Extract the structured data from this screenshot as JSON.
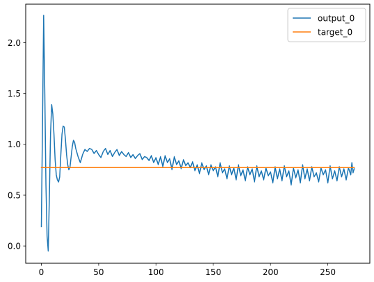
{
  "chart_data": {
    "type": "line",
    "title": "",
    "xlabel": "",
    "ylabel": "",
    "xlim": [
      -13.65,
      286.65
    ],
    "ylim": [
      -0.17,
      2.38
    ],
    "xticks": [
      0,
      50,
      100,
      150,
      200,
      250
    ],
    "yticks": [
      0.0,
      0.5,
      1.0,
      1.5,
      2.0
    ],
    "xtick_labels": [
      "0",
      "50",
      "100",
      "150",
      "200",
      "250"
    ],
    "ytick_labels": [
      "0.0",
      "0.5",
      "1.0",
      "1.5",
      "2.0"
    ],
    "grid": false,
    "legend_position": "top-right",
    "series": [
      {
        "name": "output_0",
        "color": "#1f77b4",
        "x": [
          0,
          1,
          2,
          3,
          4,
          5,
          6,
          7,
          8,
          9,
          10,
          11,
          12,
          13,
          14,
          15,
          16,
          17,
          18,
          19,
          20,
          21,
          22,
          23,
          24,
          25,
          26,
          27,
          28,
          29,
          30,
          32,
          34,
          36,
          38,
          40,
          42,
          44,
          46,
          48,
          50,
          52,
          54,
          56,
          58,
          60,
          62,
          64,
          66,
          68,
          70,
          72,
          74,
          76,
          78,
          80,
          82,
          84,
          86,
          88,
          90,
          92,
          94,
          96,
          98,
          100,
          102,
          104,
          106,
          108,
          110,
          112,
          114,
          116,
          118,
          120,
          122,
          124,
          126,
          128,
          130,
          132,
          134,
          136,
          138,
          140,
          142,
          144,
          146,
          148,
          150,
          152,
          154,
          156,
          158,
          160,
          162,
          164,
          166,
          168,
          170,
          172,
          174,
          176,
          178,
          180,
          182,
          184,
          186,
          188,
          190,
          192,
          194,
          196,
          198,
          200,
          202,
          204,
          206,
          208,
          210,
          212,
          214,
          216,
          218,
          220,
          222,
          224,
          226,
          228,
          230,
          232,
          234,
          236,
          238,
          240,
          242,
          244,
          246,
          248,
          250,
          252,
          254,
          256,
          258,
          260,
          262,
          264,
          266,
          268,
          270,
          271,
          272,
          273
        ],
        "y": [
          0.19,
          1.2,
          2.27,
          1.5,
          0.6,
          0.1,
          -0.05,
          0.5,
          1.1,
          1.39,
          1.3,
          1.1,
          0.85,
          0.7,
          0.65,
          0.63,
          0.68,
          0.9,
          1.1,
          1.18,
          1.17,
          1.05,
          0.9,
          0.8,
          0.75,
          0.78,
          0.88,
          0.98,
          1.04,
          1.02,
          0.96,
          0.88,
          0.82,
          0.9,
          0.95,
          0.93,
          0.96,
          0.95,
          0.91,
          0.94,
          0.9,
          0.87,
          0.93,
          0.96,
          0.9,
          0.94,
          0.88,
          0.92,
          0.95,
          0.89,
          0.93,
          0.9,
          0.88,
          0.92,
          0.87,
          0.9,
          0.86,
          0.89,
          0.91,
          0.85,
          0.88,
          0.87,
          0.84,
          0.89,
          0.82,
          0.87,
          0.8,
          0.88,
          0.78,
          0.89,
          0.82,
          0.86,
          0.75,
          0.88,
          0.8,
          0.84,
          0.76,
          0.85,
          0.79,
          0.82,
          0.77,
          0.83,
          0.74,
          0.8,
          0.71,
          0.82,
          0.75,
          0.79,
          0.7,
          0.8,
          0.74,
          0.78,
          0.68,
          0.82,
          0.72,
          0.76,
          0.66,
          0.79,
          0.7,
          0.77,
          0.65,
          0.8,
          0.69,
          0.75,
          0.64,
          0.78,
          0.7,
          0.76,
          0.63,
          0.79,
          0.68,
          0.74,
          0.65,
          0.77,
          0.69,
          0.73,
          0.62,
          0.78,
          0.66,
          0.76,
          0.64,
          0.79,
          0.68,
          0.74,
          0.6,
          0.77,
          0.67,
          0.75,
          0.62,
          0.8,
          0.66,
          0.76,
          0.64,
          0.78,
          0.68,
          0.72,
          0.63,
          0.77,
          0.7,
          0.75,
          0.62,
          0.79,
          0.66,
          0.74,
          0.64,
          0.78,
          0.68,
          0.76,
          0.65,
          0.77,
          0.7,
          0.82,
          0.72,
          0.76
        ]
      },
      {
        "name": "target_0",
        "color": "#ff7f0e",
        "x": [
          0,
          273
        ],
        "y": [
          0.772,
          0.772
        ]
      }
    ]
  }
}
